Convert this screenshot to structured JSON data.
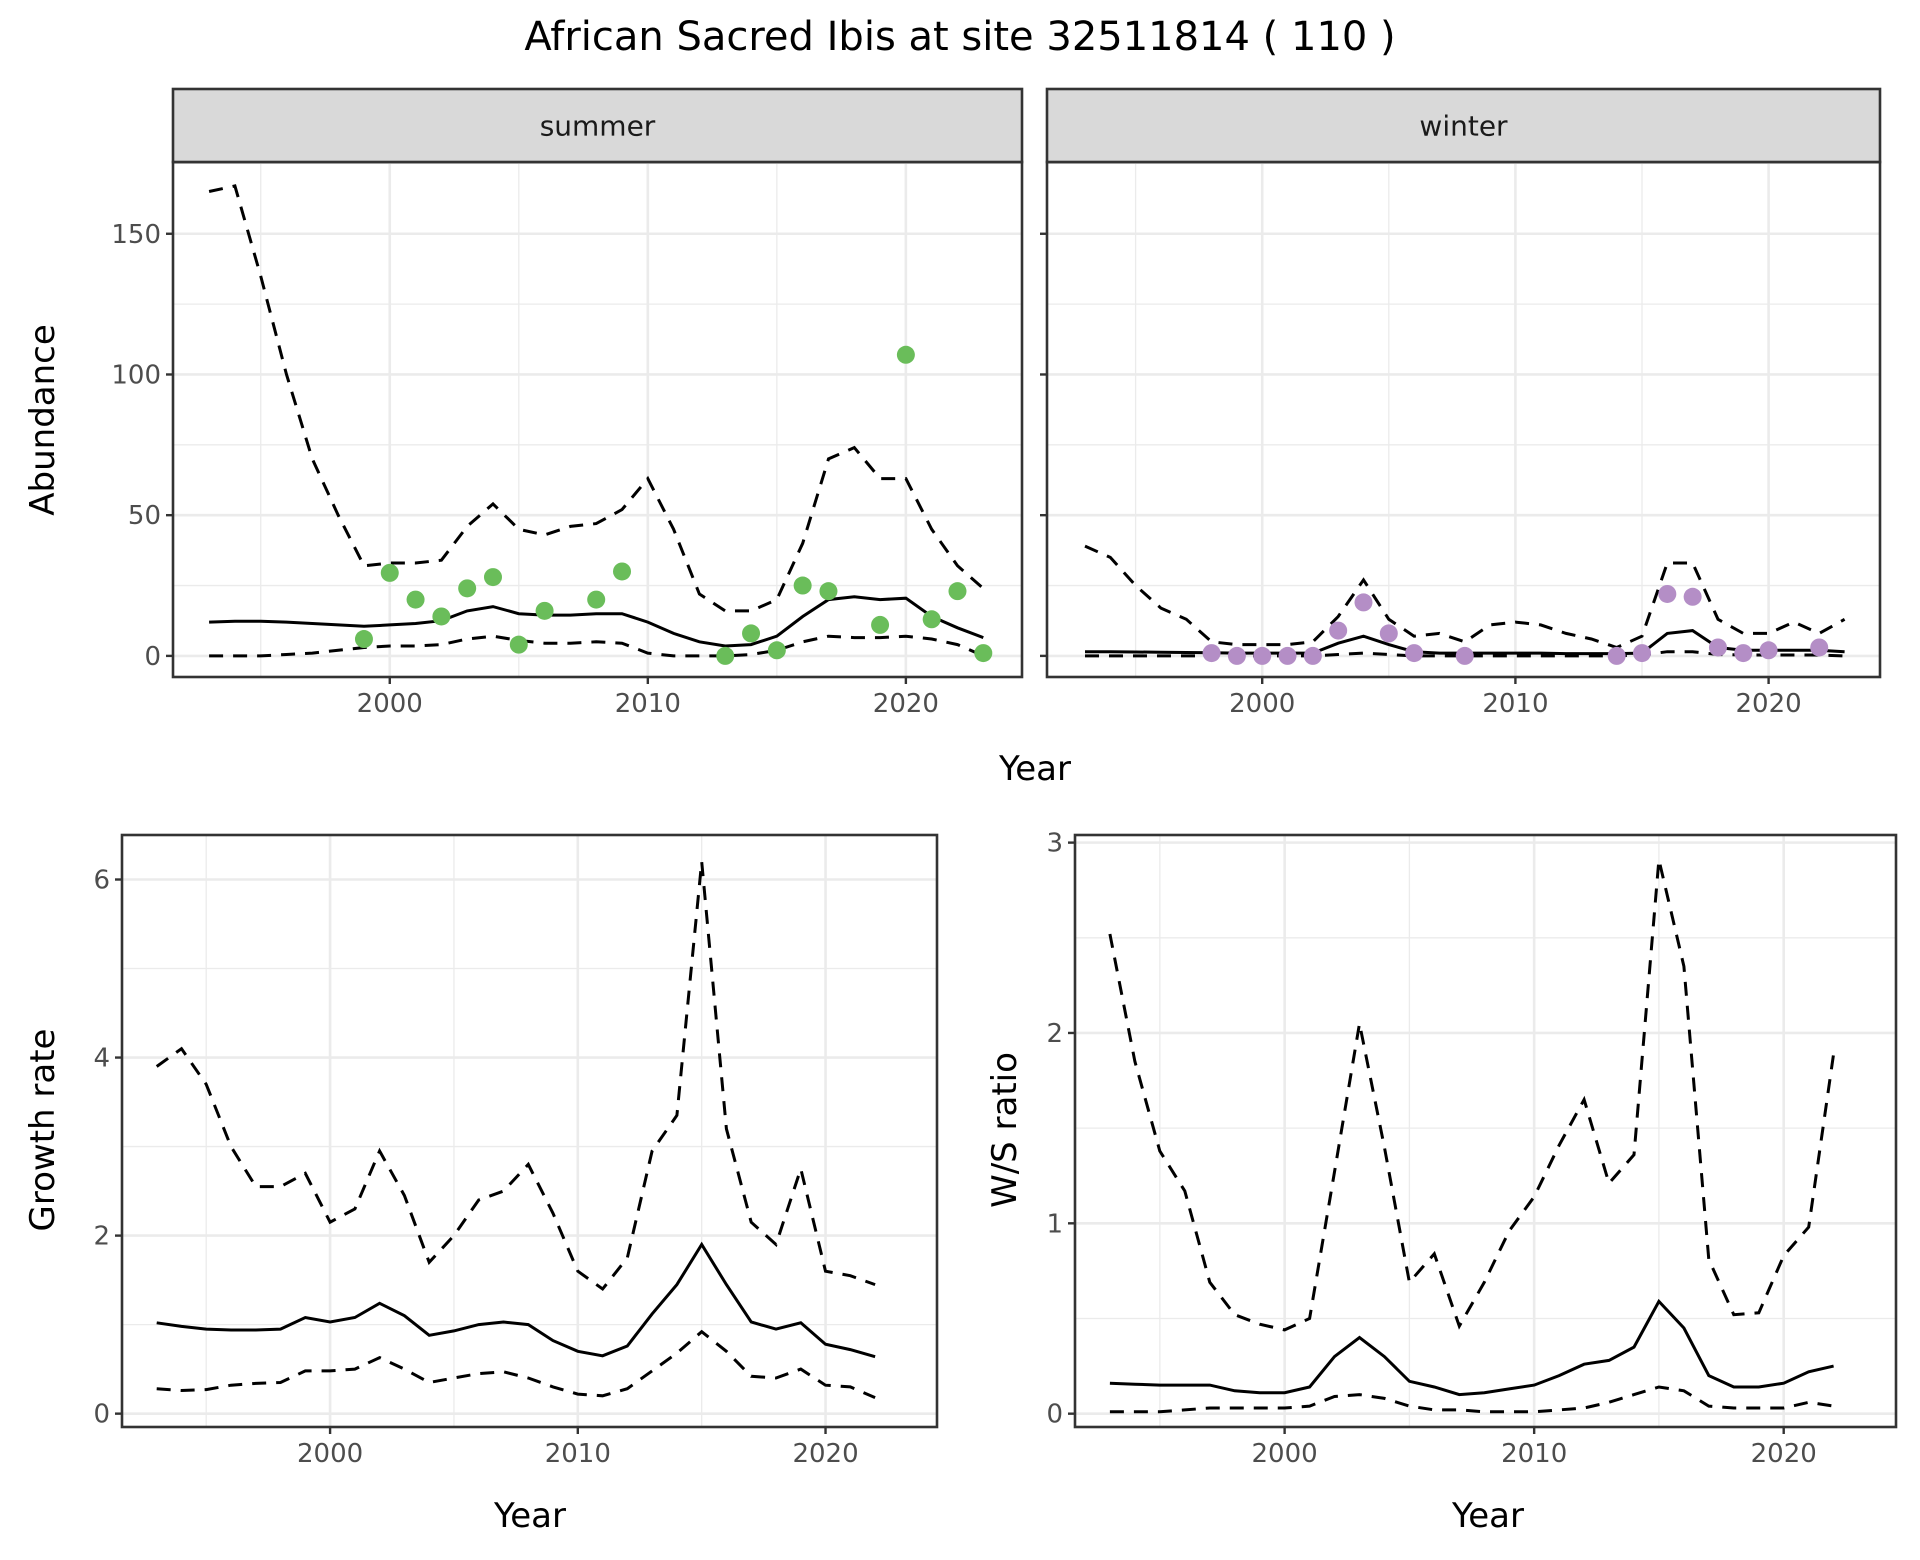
{
  "title": "African Sacred Ibis at site 32511814 ( 110 )",
  "chart_data": [
    {
      "type": "line",
      "panel": "summer",
      "strip": "summer",
      "xlabel": "Year",
      "ylabel": "Abundance",
      "xlim": [
        1991.6,
        2024.5
      ],
      "ylim": [
        -7.5,
        175.5
      ],
      "xticks": [
        2000,
        2010,
        2020
      ],
      "yticks": [
        0,
        50,
        100,
        150
      ],
      "grid": true,
      "point_color": "#6abd5a",
      "years": [
        1993,
        1994,
        1995,
        1996,
        1997,
        1998,
        1999,
        2000,
        2001,
        2002,
        2003,
        2004,
        2005,
        2006,
        2007,
        2008,
        2009,
        2010,
        2011,
        2012,
        2013,
        2014,
        2015,
        2016,
        2017,
        2018,
        2019,
        2020,
        2021,
        2022,
        2023
      ],
      "mean": [
        12,
        12.3,
        12.3,
        12,
        11.5,
        11,
        10.5,
        11,
        11.5,
        12.5,
        16,
        17.5,
        15,
        14.5,
        14.5,
        15,
        15,
        12,
        8,
        5,
        3.5,
        4,
        7,
        14,
        20,
        21,
        20,
        20.5,
        14,
        10,
        6.5
      ],
      "upper": [
        165,
        167,
        135,
        100,
        70,
        50,
        32,
        33,
        33,
        34,
        46,
        54,
        45,
        43,
        46,
        47,
        52,
        63,
        45,
        22,
        16,
        16,
        20,
        40,
        70,
        74,
        63,
        63,
        45,
        32,
        24
      ],
      "lower": [
        0,
        0,
        0,
        0.5,
        1,
        2,
        3,
        3.5,
        3.5,
        4,
        6,
        7,
        5.5,
        4.5,
        4.5,
        5,
        4.5,
        1,
        0,
        0,
        0,
        0.5,
        2,
        5,
        7,
        6.5,
        6.5,
        7,
        6,
        4,
        0
      ],
      "observed": {
        "years": [
          1999,
          2000,
          2001,
          2002,
          2003,
          2004,
          2005,
          2006,
          2008,
          2009,
          2013,
          2014,
          2015,
          2016,
          2017,
          2019,
          2020,
          2021,
          2022,
          2023
        ],
        "values": [
          6,
          29.5,
          20,
          14,
          24,
          28,
          4,
          16,
          20,
          30,
          0,
          8,
          2,
          25,
          23,
          11,
          107,
          13,
          23,
          1
        ]
      }
    },
    {
      "type": "line",
      "panel": "winter",
      "strip": "winter",
      "xlabel": "Year",
      "xlim": [
        1991.5,
        2024.4
      ],
      "ylim": [
        -7.5,
        175.5
      ],
      "xticks": [
        2000,
        2010,
        2020
      ],
      "yticks": [
        0,
        50,
        100,
        150
      ],
      "grid": true,
      "point_color": "#b48ec6",
      "years": [
        1993,
        1994,
        1995,
        1996,
        1997,
        1998,
        1999,
        2000,
        2001,
        2002,
        2003,
        2004,
        2005,
        2006,
        2007,
        2008,
        2009,
        2010,
        2011,
        2012,
        2013,
        2014,
        2015,
        2016,
        2017,
        2018,
        2019,
        2020,
        2021,
        2022,
        2023
      ],
      "mean": [
        1.5,
        1.5,
        1.4,
        1.3,
        1.2,
        1.1,
        1,
        1,
        1,
        1,
        4.5,
        7,
        4,
        1.5,
        1,
        1,
        1,
        1,
        1,
        0.8,
        0.8,
        0.8,
        1,
        8,
        9,
        3,
        2,
        2,
        2,
        2,
        1.5
      ],
      "upper": [
        39,
        35,
        25,
        17,
        13,
        5,
        4,
        4,
        4,
        5,
        14,
        27,
        13,
        7,
        8,
        5,
        11,
        12,
        11,
        8,
        6,
        3,
        7,
        33,
        33,
        13,
        8,
        8,
        12,
        8,
        13
      ],
      "lower": [
        0,
        0,
        0,
        0,
        0,
        0,
        0,
        0,
        0,
        0,
        0.5,
        1,
        0.5,
        0,
        0,
        0,
        0,
        0,
        0,
        0,
        0,
        0,
        0.3,
        1.5,
        1.5,
        0.5,
        0.3,
        0.3,
        0.3,
        0.3,
        0
      ],
      "observed": {
        "years": [
          1998,
          1999,
          2000,
          2001,
          2002,
          2003,
          2004,
          2005,
          2006,
          2008,
          2014,
          2015,
          2016,
          2017,
          2018,
          2019,
          2020,
          2022
        ],
        "values": [
          1,
          0,
          0,
          0,
          0,
          9,
          19,
          8,
          1,
          0,
          0,
          1,
          22,
          21,
          3,
          1,
          2,
          3
        ]
      }
    },
    {
      "type": "line",
      "panel": "growth",
      "xlabel": "Year",
      "ylabel": "Growth rate",
      "xlim": [
        1991.6,
        2024.5
      ],
      "ylim": [
        -0.15,
        6.5
      ],
      "xticks": [
        2000,
        2010,
        2020
      ],
      "yticks": [
        0,
        2,
        4,
        6
      ],
      "grid": true,
      "years": [
        1993,
        1994,
        1995,
        1996,
        1997,
        1998,
        1999,
        2000,
        2001,
        2002,
        2003,
        2004,
        2005,
        2006,
        2007,
        2008,
        2009,
        2010,
        2011,
        2012,
        2013,
        2014,
        2015,
        2016,
        2017,
        2018,
        2019,
        2020,
        2021,
        2022
      ],
      "mean": [
        1.02,
        0.98,
        0.95,
        0.94,
        0.94,
        0.95,
        1.08,
        1.03,
        1.08,
        1.24,
        1.1,
        0.88,
        0.93,
        1.0,
        1.03,
        1.0,
        0.82,
        0.7,
        0.65,
        0.76,
        1.12,
        1.45,
        1.9,
        1.45,
        1.03,
        0.95,
        1.02,
        0.78,
        0.72,
        0.64
      ],
      "upper": [
        3.9,
        4.1,
        3.7,
        3.0,
        2.55,
        2.55,
        2.7,
        2.15,
        2.3,
        2.95,
        2.45,
        1.7,
        2.0,
        2.4,
        2.5,
        2.8,
        2.25,
        1.6,
        1.4,
        1.75,
        2.95,
        3.35,
        6.2,
        3.2,
        2.15,
        1.9,
        2.75,
        1.6,
        1.55,
        1.45
      ],
      "lower": [
        0.28,
        0.26,
        0.27,
        0.32,
        0.34,
        0.35,
        0.48,
        0.48,
        0.5,
        0.63,
        0.5,
        0.35,
        0.4,
        0.45,
        0.47,
        0.4,
        0.3,
        0.22,
        0.2,
        0.28,
        0.48,
        0.68,
        0.92,
        0.7,
        0.42,
        0.4,
        0.5,
        0.32,
        0.3,
        0.18
      ]
    },
    {
      "type": "line",
      "panel": "ws",
      "xlabel": "Year",
      "ylabel": "W/S ratio",
      "xlim": [
        1991.6,
        2024.5
      ],
      "ylim": [
        -0.07,
        3.04
      ],
      "xticks": [
        2000,
        2010,
        2020
      ],
      "yticks": [
        0,
        1,
        2,
        3
      ],
      "grid": true,
      "years": [
        1993,
        1994,
        1995,
        1996,
        1997,
        1998,
        1999,
        2000,
        2001,
        2002,
        2003,
        2004,
        2005,
        2006,
        2007,
        2008,
        2009,
        2010,
        2011,
        2012,
        2013,
        2014,
        2015,
        2016,
        2017,
        2018,
        2019,
        2020,
        2021,
        2022
      ],
      "mean": [
        0.16,
        0.155,
        0.15,
        0.15,
        0.15,
        0.12,
        0.11,
        0.11,
        0.14,
        0.3,
        0.4,
        0.3,
        0.17,
        0.14,
        0.1,
        0.11,
        0.13,
        0.15,
        0.2,
        0.26,
        0.28,
        0.35,
        0.59,
        0.45,
        0.2,
        0.14,
        0.14,
        0.16,
        0.22,
        0.25
      ],
      "upper": [
        2.52,
        1.85,
        1.38,
        1.17,
        0.69,
        0.52,
        0.47,
        0.44,
        0.5,
        1.27,
        2.05,
        1.4,
        0.69,
        0.84,
        0.46,
        0.69,
        0.96,
        1.14,
        1.41,
        1.65,
        1.21,
        1.36,
        2.91,
        2.35,
        0.81,
        0.52,
        0.53,
        0.83,
        0.98,
        1.89
      ],
      "lower": [
        0.01,
        0.01,
        0.01,
        0.02,
        0.03,
        0.03,
        0.03,
        0.03,
        0.04,
        0.09,
        0.1,
        0.08,
        0.04,
        0.02,
        0.02,
        0.01,
        0.01,
        0.01,
        0.02,
        0.03,
        0.06,
        0.1,
        0.14,
        0.12,
        0.04,
        0.03,
        0.03,
        0.03,
        0.06,
        0.04
      ]
    }
  ]
}
